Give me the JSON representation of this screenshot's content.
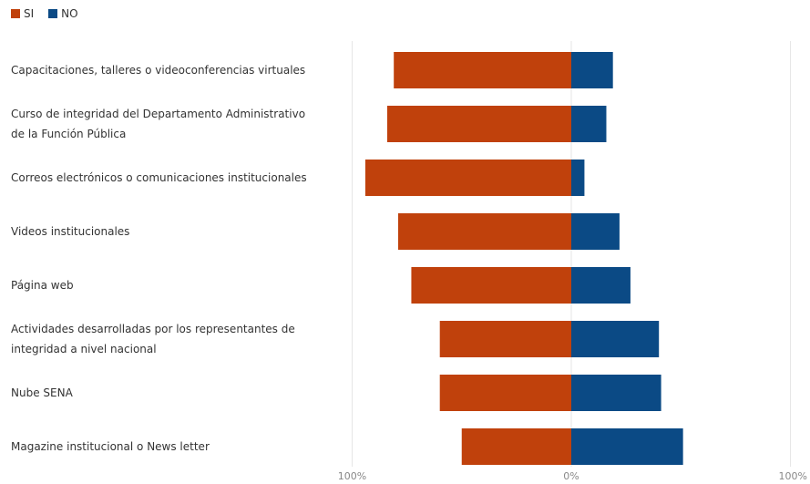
{
  "chart_data": {
    "type": "bar",
    "orientation": "horizontal-diverging",
    "legend": {
      "position": "top-left"
    },
    "categories": [
      [
        "Capacitaciones, talleres o videoconferencias virtuales"
      ],
      [
        "Curso de integridad del Departamento Administrativo",
        "de la Función Pública"
      ],
      [
        "Correos electrónicos o comunicaciones institucionales"
      ],
      [
        "Videos institucionales"
      ],
      [
        "Página web"
      ],
      [
        "Actividades desarrolladas por los representantes de",
        "integridad a nivel nacional"
      ],
      [
        "Nube SENA"
      ],
      [
        "Magazine institucional o News letter"
      ]
    ],
    "series": [
      {
        "name": "SI",
        "color": "#c0410c",
        "values": [
          81,
          84,
          94,
          79,
          73,
          60,
          60,
          50
        ]
      },
      {
        "name": "NO",
        "color": "#0b4a85",
        "values": [
          19,
          16,
          6,
          22,
          27,
          40,
          41,
          51
        ]
      }
    ],
    "xlim": [
      -100,
      100
    ],
    "ticks": [
      {
        "value": -100,
        "label": "100%"
      },
      {
        "value": 0,
        "label": "0%"
      },
      {
        "value": 100,
        "label": "100%"
      }
    ],
    "grid": true
  }
}
